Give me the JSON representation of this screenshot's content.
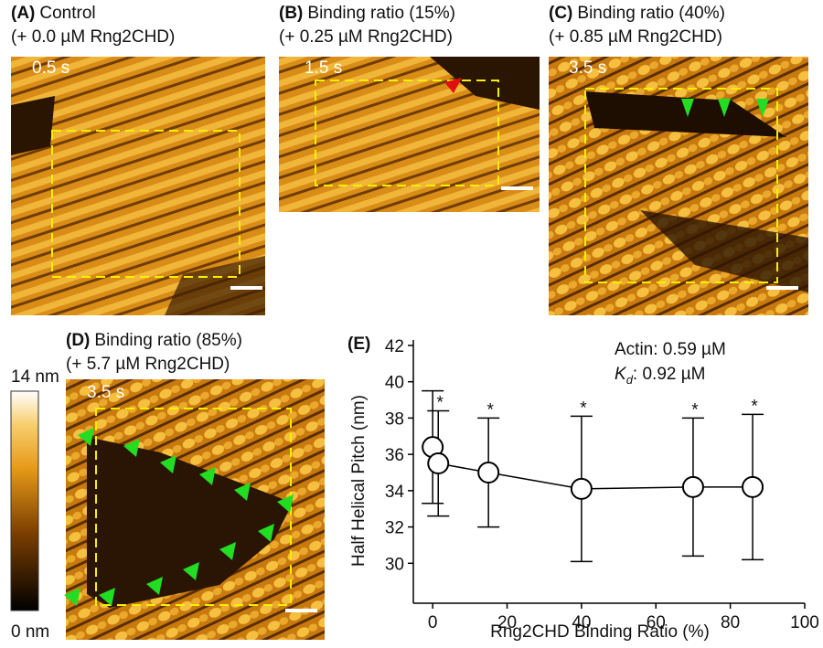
{
  "panels": [
    {
      "letter": "(A)",
      "title": "Control",
      "subtitle": "(+ 0.0 µM Rng2CHD)",
      "time": "0.5 s"
    },
    {
      "letter": "(B)",
      "title": "Binding ratio (15%)",
      "subtitle": "(+ 0.25 µM Rng2CHD)",
      "time": "1.5 s"
    },
    {
      "letter": "(C)",
      "title": "Binding ratio (40%)",
      "subtitle": "(+ 0.85 µM Rng2CHD)",
      "time": "3.5 s"
    },
    {
      "letter": "(D)",
      "title": "Binding ratio (85%)",
      "subtitle": "(+ 5.7 µM Rng2CHD)",
      "time": "3.5 s"
    }
  ],
  "colorbar": {
    "top_label": "14 nm",
    "bottom_label": "0 nm"
  },
  "chart_data": {
    "type": "errorbar",
    "panel_letter": "(E)",
    "x_label": "Rng2CHD Binding Ratio (%)",
    "y_label": "Half Helical Pitch (nm)",
    "annotation": "Actin: 0.59 µM",
    "kd_annotation": {
      "symbol": "K",
      "subscript": "d",
      "text": ": 0.92 µM"
    },
    "x": [
      0,
      1.5,
      15,
      40,
      70,
      86
    ],
    "values": [
      36.4,
      35.5,
      35.0,
      34.1,
      34.2,
      34.2
    ],
    "errors": [
      3.1,
      2.9,
      3.0,
      4.0,
      3.8,
      4.0
    ],
    "significance": [
      null,
      "*",
      "*",
      "*",
      "*",
      "*"
    ],
    "xlim": [
      -5.2,
      100
    ],
    "ylim": [
      27.8,
      42.3
    ],
    "xticks": [
      0,
      20,
      40,
      60,
      80,
      100
    ],
    "yticks": [
      30,
      32,
      34,
      36,
      38,
      40,
      42
    ],
    "color": "#000000"
  }
}
